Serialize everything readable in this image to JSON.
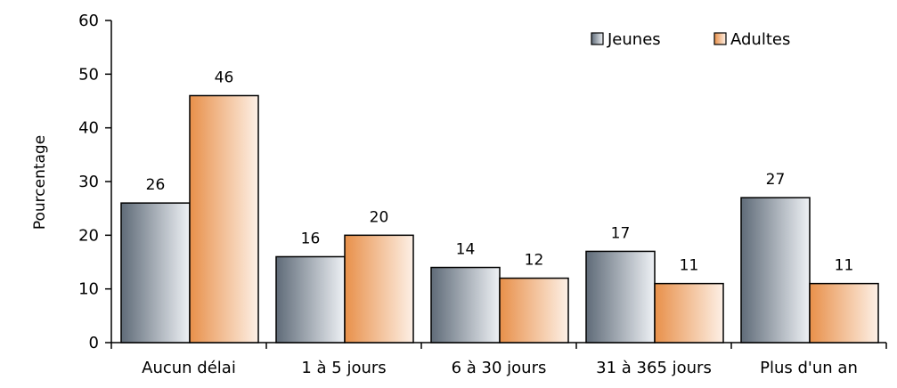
{
  "chart_data": {
    "type": "bar",
    "title": "",
    "xlabel": "",
    "ylabel": "Pourcentage",
    "ylim": [
      0,
      60
    ],
    "yticks": [
      0,
      10,
      20,
      30,
      40,
      50,
      60
    ],
    "grid": false,
    "legend_position": "top-right",
    "categories": [
      "Aucun délai",
      "1 à 5 jours",
      "6 à 30 jours",
      "31 à 365 jours",
      "Plus d'un an"
    ],
    "series": [
      {
        "name": "Jeunes",
        "values": [
          26,
          16,
          14,
          17,
          27
        ],
        "value_labels": [
          "26",
          "16",
          "14",
          "17",
          "27"
        ],
        "color_dark": "#5f6b78",
        "color_light": "#eef1f5"
      },
      {
        "name": "Adultes",
        "values": [
          46,
          20,
          12,
          11,
          11
        ],
        "value_labels": [
          "46",
          "20",
          "12",
          "11",
          "11"
        ],
        "color_dark": "#e8904a",
        "color_light": "#fdf0e6"
      }
    ]
  }
}
